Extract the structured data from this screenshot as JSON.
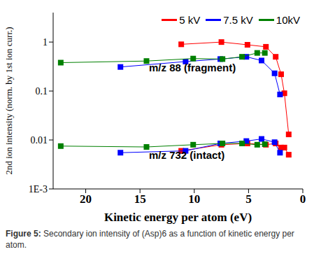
{
  "chart_data": {
    "type": "scatter",
    "caption": "Figure 5: Secondary ion intensity of (Asp)6 as a function of kinetic energy per atom.",
    "x_label": "Kinetic energy per atom (eV)",
    "y_label": "2nd ion intensity (norm. by 1st ion curr.)",
    "annotations": [
      "m/z 88 (fragment)",
      "m/z 732 (intact)"
    ],
    "xlim": [
      23,
      0
    ],
    "xticks": [
      20,
      15,
      10,
      5,
      0
    ],
    "ylim": [
      0.001,
      4
    ],
    "yticks": [
      {
        "value": 0.001,
        "label": "1E-3"
      },
      0.01,
      0.1,
      1
    ],
    "log": "y",
    "grid": false,
    "legend": "upper right",
    "marker": "square",
    "line_style": "solid",
    "series": [
      {
        "name": "5 kV",
        "color": "#ff0000",
        "x": [
          11.2,
          7.5,
          5.1,
          3.4,
          2.5,
          2.0,
          1.7,
          1.3
        ],
        "values": [
          0.9,
          1.0,
          0.88,
          0.8,
          0.5,
          0.22,
          0.09,
          0.013
        ]
      },
      {
        "name": "7.5 kV",
        "color": "#0000ff",
        "x": [
          16.8,
          10.8,
          7.6,
          5.2,
          3.8,
          2.6,
          2.1
        ],
        "values": [
          0.31,
          0.4,
          0.45,
          0.5,
          0.42,
          0.23,
          0.085
        ]
      },
      {
        "name": "10kV",
        "color": "#008000",
        "x": [
          22.3,
          14.4,
          10.1,
          7.4,
          5.6,
          4.2,
          3.5
        ],
        "values": [
          0.38,
          0.41,
          0.46,
          0.45,
          0.5,
          0.6,
          0.6
        ]
      },
      {
        "name": "5 kV",
        "color": "#ff0000",
        "x": [
          11.2,
          7.5,
          5.1,
          3.4,
          2.5,
          2.0,
          1.7,
          1.3
        ],
        "values": [
          0.006,
          0.008,
          0.0085,
          0.008,
          0.0085,
          0.007,
          0.007,
          0.005
        ]
      },
      {
        "name": "7.5 kV",
        "color": "#0000ff",
        "x": [
          16.8,
          10.8,
          7.6,
          5.2,
          3.8,
          2.6,
          2.1
        ],
        "values": [
          0.0055,
          0.006,
          0.0085,
          0.0095,
          0.0105,
          0.009,
          0.0055
        ]
      },
      {
        "name": "10kV",
        "color": "#008000",
        "x": [
          22.3,
          14.4,
          10.1,
          7.4,
          5.6,
          4.2,
          3.5
        ],
        "values": [
          0.0075,
          0.0072,
          0.008,
          0.0085,
          0.0085,
          0.008,
          0.0082
        ]
      }
    ]
  }
}
